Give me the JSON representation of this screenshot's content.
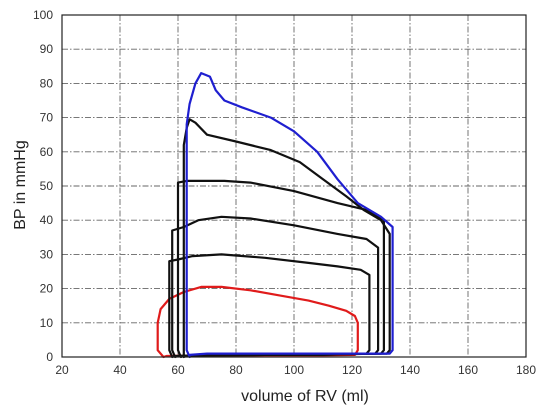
{
  "chart_data": {
    "type": "line",
    "title": "",
    "xlabel": "volume of RV (ml)",
    "ylabel": "BP in mmHg",
    "xlim": [
      20,
      180
    ],
    "ylim": [
      0,
      100
    ],
    "xticks": [
      20,
      40,
      60,
      80,
      100,
      120,
      140,
      160,
      180
    ],
    "yticks": [
      0,
      10,
      20,
      30,
      40,
      50,
      60,
      70,
      80,
      90,
      100
    ],
    "grid": true,
    "legend": "none",
    "series": [
      {
        "color": "#e01b1b",
        "points": [
          [
            55,
            0
          ],
          [
            53,
            2
          ],
          [
            53,
            10
          ],
          [
            54,
            14
          ],
          [
            57,
            17
          ],
          [
            62,
            19
          ],
          [
            68,
            20.5
          ],
          [
            75,
            20.5
          ],
          [
            85,
            19.5
          ],
          [
            95,
            18
          ],
          [
            105,
            16.5
          ],
          [
            112,
            15
          ],
          [
            118,
            13.5
          ],
          [
            121,
            12
          ],
          [
            122,
            10
          ],
          [
            122,
            2
          ],
          [
            121,
            0.6
          ],
          [
            110,
            0.5
          ],
          [
            90,
            0.5
          ],
          [
            70,
            0.5
          ],
          [
            56,
            0.3
          ],
          [
            55,
            0
          ]
        ]
      },
      {
        "color": "#111111",
        "points": [
          [
            58,
            0
          ],
          [
            57,
            2
          ],
          [
            57,
            28
          ],
          [
            60,
            28.5
          ],
          [
            65,
            29.5
          ],
          [
            75,
            30
          ],
          [
            90,
            29
          ],
          [
            105,
            27.5
          ],
          [
            115,
            26.5
          ],
          [
            123,
            25.5
          ],
          [
            126,
            24
          ],
          [
            126,
            2
          ],
          [
            125,
            1
          ],
          [
            110,
            0.6
          ],
          [
            90,
            0.6
          ],
          [
            70,
            0.5
          ],
          [
            59,
            0.3
          ],
          [
            58,
            0
          ]
        ]
      },
      {
        "color": "#111111",
        "points": [
          [
            59,
            0
          ],
          [
            58,
            2
          ],
          [
            58,
            37
          ],
          [
            62,
            38
          ],
          [
            67,
            40
          ],
          [
            75,
            41
          ],
          [
            85,
            40.5
          ],
          [
            100,
            38.5
          ],
          [
            115,
            36
          ],
          [
            125,
            34.5
          ],
          [
            129,
            32
          ],
          [
            129,
            2
          ],
          [
            128,
            1
          ],
          [
            110,
            0.7
          ],
          [
            90,
            0.6
          ],
          [
            70,
            0.5
          ],
          [
            60,
            0.3
          ],
          [
            59,
            0
          ]
        ]
      },
      {
        "color": "#111111",
        "points": [
          [
            61,
            0
          ],
          [
            60,
            2
          ],
          [
            60,
            51
          ],
          [
            63,
            51.5
          ],
          [
            70,
            51.5
          ],
          [
            76,
            51.5
          ],
          [
            85,
            51
          ],
          [
            100,
            48.5
          ],
          [
            115,
            45
          ],
          [
            125,
            43
          ],
          [
            131,
            40
          ],
          [
            131,
            2
          ],
          [
            130,
            1
          ],
          [
            110,
            0.8
          ],
          [
            90,
            0.7
          ],
          [
            70,
            0.6
          ],
          [
            62,
            0.3
          ],
          [
            61,
            0
          ]
        ]
      },
      {
        "color": "#111111",
        "points": [
          [
            62,
            0
          ],
          [
            62,
            2
          ],
          [
            62,
            62
          ],
          [
            63,
            67
          ],
          [
            64,
            69.5
          ],
          [
            66,
            68.5
          ],
          [
            70,
            65
          ],
          [
            80,
            63
          ],
          [
            92,
            60.5
          ],
          [
            102,
            57
          ],
          [
            110,
            52
          ],
          [
            118,
            47
          ],
          [
            124,
            43
          ],
          [
            130,
            40
          ],
          [
            133,
            36
          ],
          [
            133,
            2
          ],
          [
            132,
            1
          ],
          [
            110,
            0.9
          ],
          [
            90,
            0.8
          ],
          [
            70,
            0.6
          ],
          [
            63,
            0.3
          ],
          [
            62,
            0
          ]
        ]
      },
      {
        "color": "#1f1fd0",
        "points": [
          [
            64,
            0
          ],
          [
            63,
            2
          ],
          [
            63,
            68
          ],
          [
            64,
            74
          ],
          [
            66,
            80
          ],
          [
            68,
            83
          ],
          [
            71,
            82
          ],
          [
            73,
            78
          ],
          [
            76,
            75
          ],
          [
            82,
            73
          ],
          [
            92,
            70
          ],
          [
            100,
            66
          ],
          [
            108,
            60
          ],
          [
            115,
            52
          ],
          [
            122,
            45
          ],
          [
            130,
            41
          ],
          [
            134,
            38
          ],
          [
            134,
            2
          ],
          [
            133,
            1
          ],
          [
            110,
            1
          ],
          [
            90,
            1
          ],
          [
            70,
            1
          ],
          [
            64,
            0.6
          ],
          [
            64,
            0
          ]
        ]
      }
    ]
  }
}
